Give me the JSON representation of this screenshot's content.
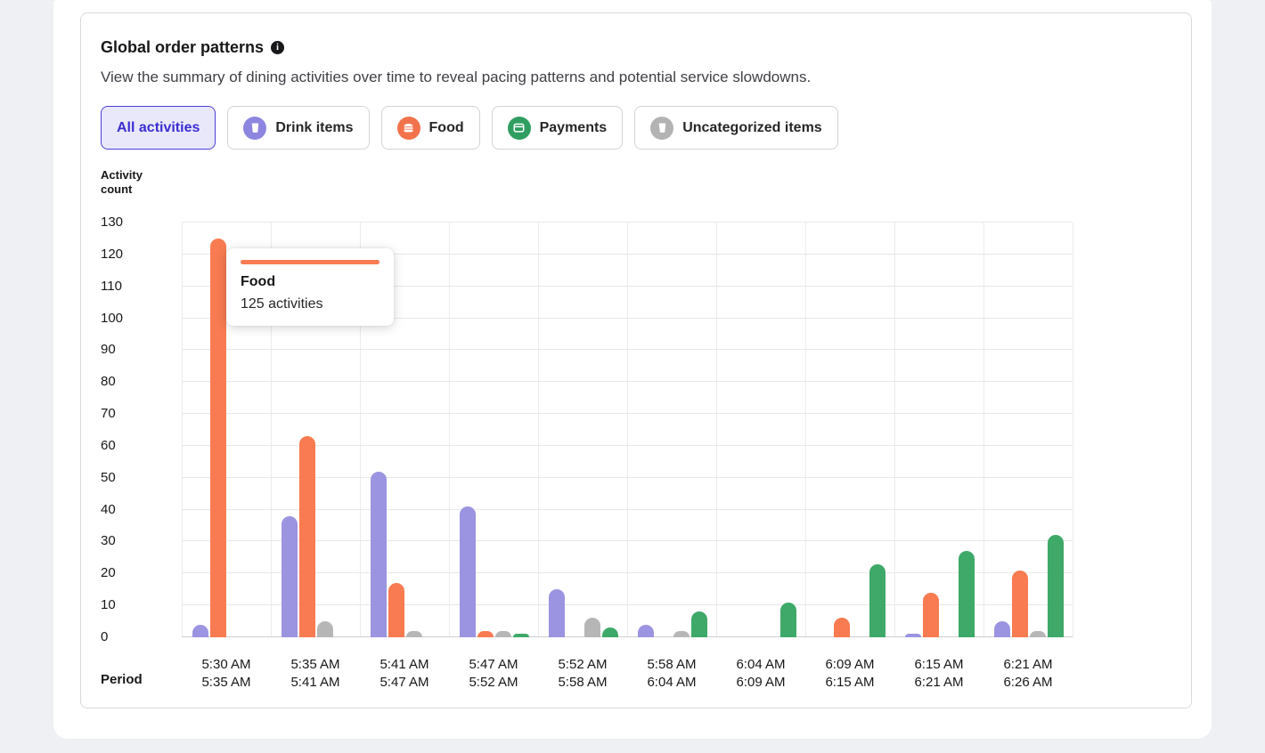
{
  "header": {
    "title": "Global order patterns",
    "subtitle": "View the summary of dining activities over time to reveal pacing patterns and potential service slowdowns."
  },
  "filters": [
    {
      "label": "All activities",
      "selected": true,
      "icon": null,
      "icon_bg": null
    },
    {
      "label": "Drink items",
      "selected": false,
      "icon": "cup-icon",
      "icon_bg": "#8d86e0"
    },
    {
      "label": "Food",
      "selected": false,
      "icon": "burger-icon",
      "icon_bg": "#f2734b"
    },
    {
      "label": "Payments",
      "selected": false,
      "icon": "card-icon",
      "icon_bg": "#2f9e60"
    },
    {
      "label": "Uncategorized items",
      "selected": false,
      "icon": "cup-icon",
      "icon_bg": "#b3b3b3"
    }
  ],
  "tooltip": {
    "series": "Food",
    "text": "125 activities",
    "accent": "#f87b51"
  },
  "axes": {
    "y_title": "Activity\ncount",
    "x_title": "Period"
  },
  "chart_data": {
    "type": "bar",
    "title": "Global order patterns",
    "ylabel": "Activity count",
    "xlabel": "Period",
    "ylim": [
      0,
      130
    ],
    "ytick_step": 10,
    "grid": true,
    "legend_position": "none",
    "categories": [
      [
        "5:30 AM",
        "5:35 AM"
      ],
      [
        "5:35 AM",
        "5:41 AM"
      ],
      [
        "5:41 AM",
        "5:47 AM"
      ],
      [
        "5:47 AM",
        "5:52 AM"
      ],
      [
        "5:52 AM",
        "5:58 AM"
      ],
      [
        "5:58 AM",
        "6:04 AM"
      ],
      [
        "6:04 AM",
        "6:09 AM"
      ],
      [
        "6:09 AM",
        "6:15 AM"
      ],
      [
        "6:15 AM",
        "6:21 AM"
      ],
      [
        "6:21 AM",
        "6:26 AM"
      ]
    ],
    "series": [
      {
        "name": "Drink items",
        "color": "#9b94e1",
        "values": [
          4,
          38,
          52,
          41,
          15,
          4,
          0,
          0,
          1,
          5
        ]
      },
      {
        "name": "Food",
        "color": "#f87b51",
        "values": [
          125,
          63,
          17,
          2,
          0,
          0,
          0,
          6,
          14,
          21
        ]
      },
      {
        "name": "Uncategorized items",
        "color": "#b7b6b6",
        "values": [
          0,
          5,
          2,
          2,
          6,
          2,
          0,
          0,
          0,
          2
        ]
      },
      {
        "name": "Payments",
        "color": "#3ea968",
        "values": [
          0,
          0,
          0,
          1,
          3,
          8,
          11,
          23,
          27,
          32
        ]
      }
    ]
  }
}
